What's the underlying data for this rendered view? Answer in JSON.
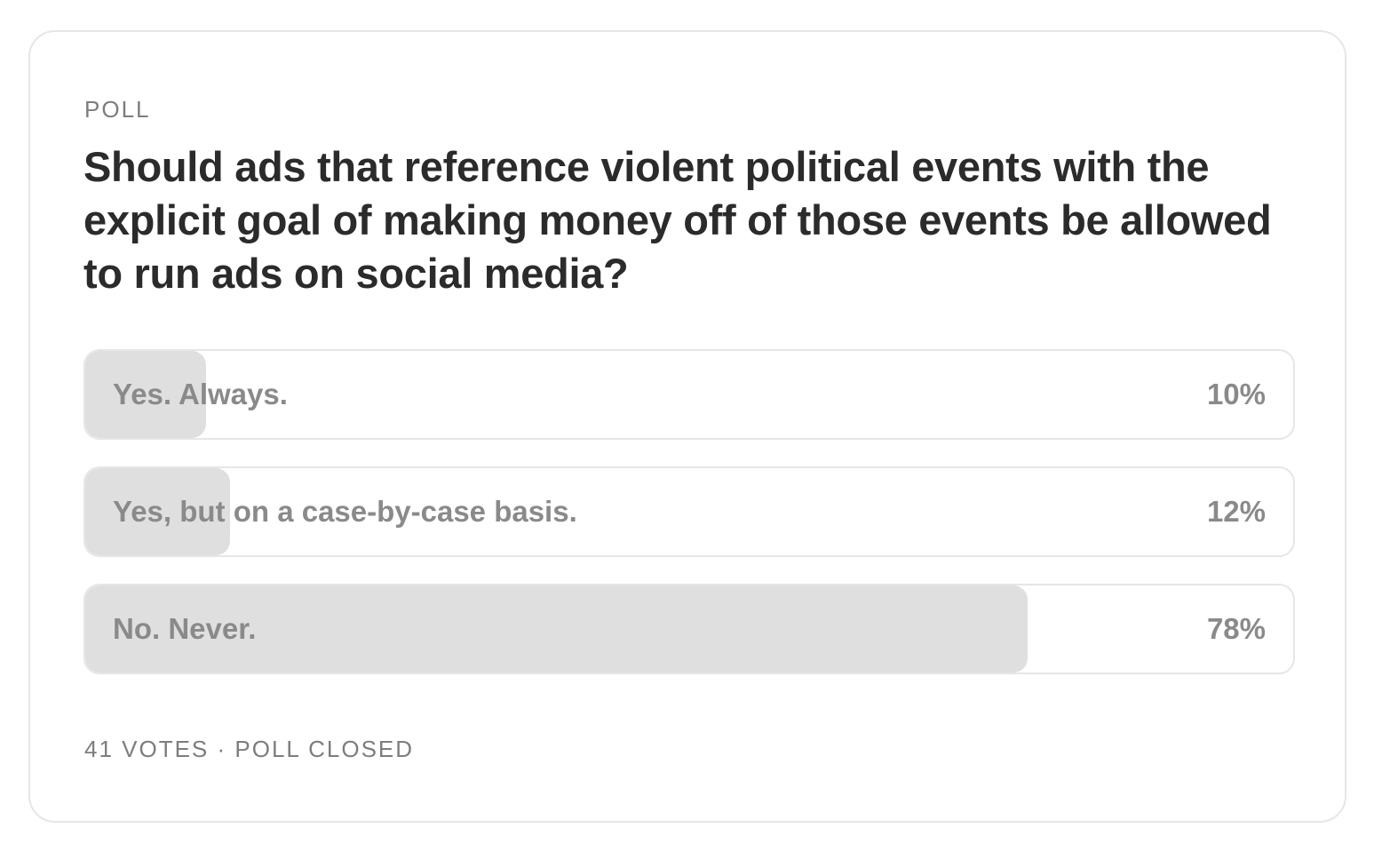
{
  "poll": {
    "kicker": "POLL",
    "question": "Should ads that reference violent political events with the explicit goal of making money off of those events be allowed to run ads on social media?",
    "options": [
      {
        "label": "Yes. Always.",
        "percent_label": "10%",
        "fill_fraction": 0.1
      },
      {
        "label": "Yes, but on a case-by-case basis.",
        "percent_label": "12%",
        "fill_fraction": 0.12
      },
      {
        "label": "No. Never.",
        "percent_label": "78%",
        "fill_fraction": 0.78
      }
    ],
    "footer": "41 VOTES · POLL CLOSED"
  },
  "colors": {
    "fill": "#dfdfdf",
    "border": "#e6e6e6",
    "question_text": "#2b2b2b",
    "option_text": "#8a8a8a",
    "meta_text": "#7d7d7d"
  }
}
